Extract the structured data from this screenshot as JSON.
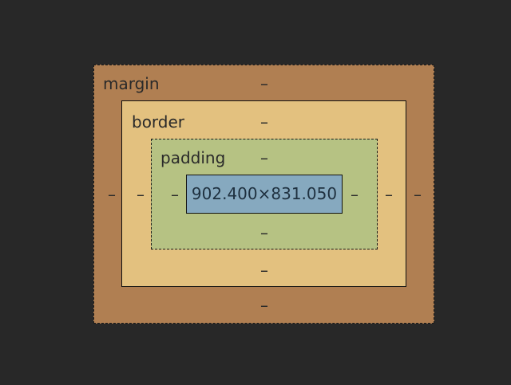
{
  "layers": {
    "margin": {
      "label": "margin",
      "top": "–",
      "right": "–",
      "bottom": "–",
      "left": "–"
    },
    "border": {
      "label": "border",
      "top": "–",
      "right": "–",
      "bottom": "–",
      "left": "–"
    },
    "padding": {
      "label": "padding",
      "top": "–",
      "right": "–",
      "bottom": "–",
      "left": "–"
    },
    "content": {
      "size": "902.400×831.050"
    }
  },
  "colors": {
    "background": "#282828",
    "margin": "#b07f52",
    "border": "#e3c17f",
    "padding": "#b6c283",
    "content": "#86a9bf"
  }
}
